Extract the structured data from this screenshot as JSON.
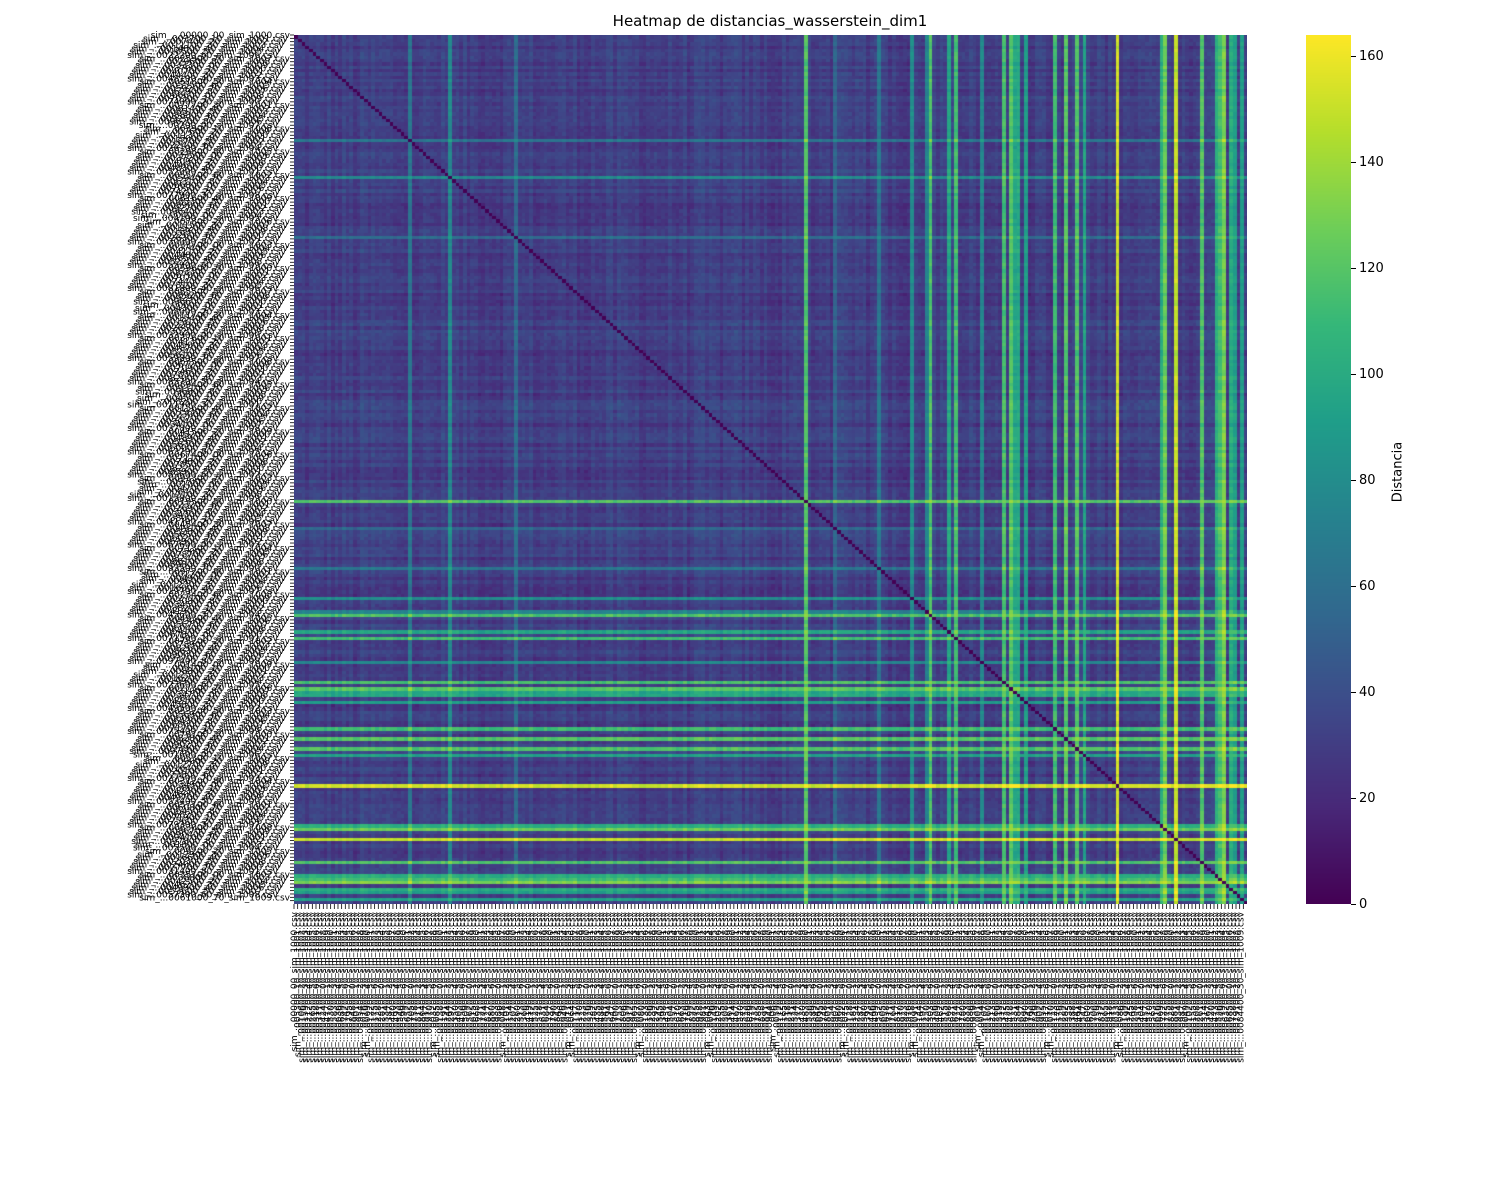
{
  "chart_data": {
    "type": "heatmap",
    "title": "Heatmap de distancias_wasserstein_dim1",
    "xlabel": "",
    "ylabel": "",
    "row_labels": "sim_... (illegible, heavily overlapping filename labels)",
    "col_labels": "sim_... (illegible, heavily overlapping filename labels)",
    "n": 260,
    "colormap": "viridis",
    "vmin": 0,
    "vmax": 164,
    "diagonal_value": 0,
    "background_value_range": [
      12,
      35
    ],
    "high_columns_value_approx": 110,
    "max_value_approx": 160,
    "colorbar": {
      "label": "Distancia",
      "ticks": [
        0,
        20,
        40,
        60,
        80,
        100,
        120,
        140,
        160
      ]
    }
  },
  "colors": {
    "viridis": [
      "#440154",
      "#482878",
      "#3e4989",
      "#31688e",
      "#26828e",
      "#1f9e89",
      "#35b779",
      "#6ece58",
      "#b5de2b",
      "#fde725"
    ]
  }
}
